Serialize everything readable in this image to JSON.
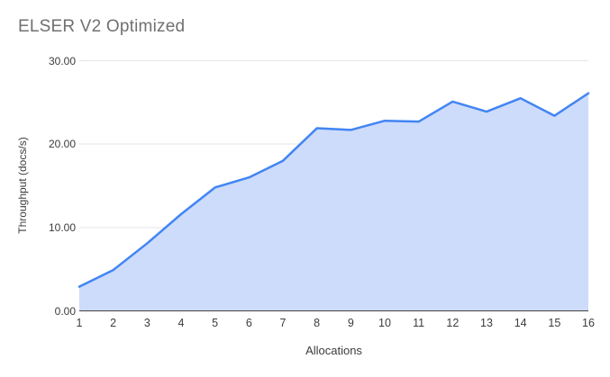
{
  "page": {
    "background": "#ffffff"
  },
  "chart_data": {
    "type": "area",
    "title": "ELSER V2 Optimized",
    "xlabel": "Allocations",
    "ylabel": "Throughput (docs/s)",
    "categories": [
      1,
      2,
      3,
      4,
      5,
      6,
      7,
      8,
      9,
      10,
      11,
      12,
      13,
      14,
      15,
      16
    ],
    "values": [
      2.9,
      4.9,
      8.1,
      11.6,
      14.8,
      16.0,
      18.0,
      21.9,
      21.7,
      22.8,
      22.7,
      25.1,
      23.9,
      25.5,
      23.4,
      26.1
    ],
    "ylim": [
      0,
      30
    ],
    "ytick_values": [
      0,
      10,
      20,
      30
    ],
    "ytick_labels": [
      "0.00",
      "10.00",
      "20.00",
      "30.00"
    ],
    "grid": true,
    "legend": "none",
    "markers": "none",
    "colors": {
      "line": "#4285f4",
      "fill": "#cddcfa",
      "grid": "#e6e6e6",
      "axis": "#424242",
      "title_text": "#707070",
      "label_text": "#3c3c3c"
    }
  }
}
